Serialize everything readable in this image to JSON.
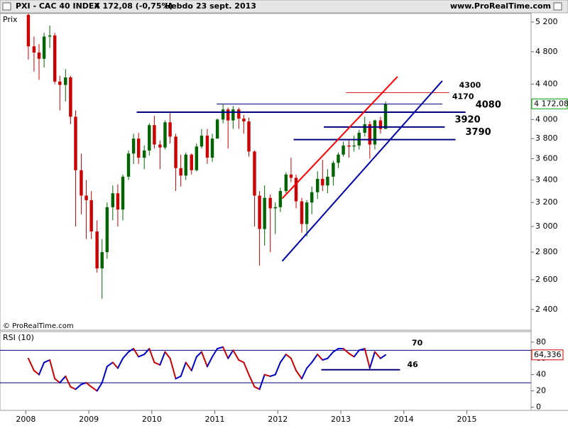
{
  "header": {
    "symbol": "PXI - CAC 40 INDEX",
    "quote": "4 172,08 (-0,75%)",
    "period": "Hebdo",
    "date": "23 sept. 2013",
    "site": "www.ProRealTime.com"
  },
  "chart_data": [
    {
      "type": "candlestick",
      "panel_label": "Prix",
      "credit": "© ProRealTime.com",
      "x": [
        2008.04,
        2008.13,
        2008.21,
        2008.29,
        2008.38,
        2008.46,
        2008.54,
        2008.63,
        2008.71,
        2008.79,
        2008.88,
        2008.96,
        2009.04,
        2009.13,
        2009.21,
        2009.29,
        2009.38,
        2009.46,
        2009.54,
        2009.63,
        2009.71,
        2009.79,
        2009.88,
        2009.96,
        2010.04,
        2010.13,
        2010.21,
        2010.29,
        2010.38,
        2010.46,
        2010.54,
        2010.63,
        2010.71,
        2010.79,
        2010.88,
        2010.96,
        2011.04,
        2011.13,
        2011.21,
        2011.29,
        2011.38,
        2011.46,
        2011.54,
        2011.63,
        2011.71,
        2011.79,
        2011.88,
        2011.96,
        2012.04,
        2012.13,
        2012.21,
        2012.29,
        2012.38,
        2012.46,
        2012.54,
        2012.63,
        2012.71,
        2012.79,
        2012.88,
        2012.96,
        2013.04,
        2013.13,
        2013.21,
        2013.29,
        2013.38,
        2013.46,
        2013.54,
        2013.63,
        2013.71
      ],
      "open": [
        5300,
        4870,
        4790,
        4710,
        5000,
        5015,
        4430,
        4390,
        4480,
        4030,
        3490,
        3260,
        3220,
        2960,
        2680,
        2800,
        3160,
        3280,
        3140,
        3430,
        3650,
        3800,
        3610,
        3680,
        3940,
        3740,
        3710,
        3970,
        3820,
        3510,
        3440,
        3640,
        3490,
        3720,
        3830,
        3610,
        3800,
        4000,
        4110,
        3990,
        4110,
        4010,
        3980,
        3670,
        3260,
        2980,
        3240,
        3150,
        3160,
        3300,
        3450,
        3420,
        3210,
        3020,
        3200,
        3290,
        3410,
        3350,
        3430,
        3560,
        3640,
        3730,
        3720,
        3730,
        3860,
        3950,
        3740,
        3990,
        3900
      ],
      "high": [
        5350,
        5000,
        4900,
        5050,
        5150,
        5050,
        4500,
        4580,
        4500,
        4100,
        3650,
        3400,
        3300,
        3050,
        2900,
        3200,
        3350,
        3360,
        3450,
        3680,
        3850,
        3860,
        3730,
        3960,
        4040,
        3780,
        3990,
        4070,
        3850,
        3640,
        3660,
        3650,
        3750,
        3900,
        3900,
        3850,
        4010,
        4170,
        4130,
        4150,
        4130,
        4050,
        4020,
        3680,
        3300,
        3350,
        3270,
        3200,
        3330,
        3470,
        3610,
        3450,
        3240,
        3220,
        3340,
        3480,
        3590,
        3500,
        3580,
        3660,
        3770,
        3790,
        3830,
        3890,
        4030,
        3980,
        4000,
        4030,
        4200
      ],
      "low": [
        4700,
        4550,
        4450,
        4600,
        4850,
        4400,
        4100,
        4200,
        3950,
        3000,
        3100,
        2900,
        2900,
        2650,
        2470,
        2750,
        3050,
        3000,
        3050,
        3400,
        3550,
        3550,
        3500,
        3630,
        3700,
        3500,
        3690,
        3750,
        3300,
        3340,
        3400,
        3450,
        3480,
        3700,
        3550,
        3570,
        3800,
        3960,
        3700,
        3900,
        3900,
        3850,
        3620,
        3000,
        2700,
        2850,
        2800,
        2940,
        3120,
        3280,
        3380,
        3150,
        2950,
        2920,
        3100,
        3230,
        3300,
        3280,
        3350,
        3510,
        3620,
        3610,
        3670,
        3690,
        3820,
        3600,
        3690,
        3850,
        3900
      ],
      "close": [
        4870,
        4790,
        4710,
        5000,
        5015,
        4430,
        4390,
        4480,
        4030,
        3490,
        3260,
        3220,
        2960,
        2680,
        2800,
        3160,
        3280,
        3140,
        3430,
        3650,
        3800,
        3610,
        3680,
        3940,
        3740,
        3710,
        3970,
        3820,
        3510,
        3440,
        3640,
        3490,
        3720,
        3830,
        3610,
        3800,
        4000,
        4110,
        3990,
        4110,
        4010,
        3980,
        3670,
        3260,
        2980,
        3240,
        3150,
        3160,
        3300,
        3450,
        3420,
        3210,
        3020,
        3200,
        3290,
        3410,
        3350,
        3430,
        3560,
        3640,
        3730,
        3720,
        3730,
        3860,
        3950,
        3740,
        3990,
        3900,
        4172.08
      ],
      "up_color": "#006400",
      "down_color": "#cc0000",
      "xlim": [
        2007.59,
        2016.02
      ],
      "xticks": [
        2008,
        2009,
        2010,
        2011,
        2012,
        2013,
        2014,
        2015
      ],
      "ylim": [
        2270,
        5320
      ],
      "log_scale": true,
      "yticks": [
        {
          "value": 5200,
          "label": "5 200"
        },
        {
          "value": 4800,
          "label": "4 800"
        },
        {
          "value": 4400,
          "label": "4 400"
        },
        {
          "value": 4000,
          "label": "4 000"
        },
        {
          "value": 3800,
          "label": "3 800"
        },
        {
          "value": 3600,
          "label": "3 600"
        },
        {
          "value": 3400,
          "label": "3 400"
        },
        {
          "value": 3200,
          "label": "3 200"
        },
        {
          "value": 3000,
          "label": "3 000"
        },
        {
          "value": 2800,
          "label": "2 800"
        },
        {
          "value": 2600,
          "label": "2 600"
        },
        {
          "value": 2400,
          "label": "2 400"
        }
      ],
      "last_price": {
        "value": 4172.08,
        "label": "4 172,08",
        "color": "#00a000"
      },
      "levels": [
        {
          "value": 4300,
          "label": "4300",
          "x": [
            2013.08,
            2014.72
          ],
          "color": "#e02020",
          "width": 1
        },
        {
          "value": 4170,
          "label": "4170",
          "x": [
            2011.03,
            2014.61
          ],
          "color": "#000080",
          "width": 1
        },
        {
          "value": 4080,
          "label": "4080",
          "x": [
            2009.76,
            2014.98
          ],
          "color": "#000080",
          "width": 2
        },
        {
          "value": 3920,
          "label": "3920",
          "x": [
            2012.73,
            2014.65
          ],
          "color": "#000080",
          "width": 2
        },
        {
          "value": 3790,
          "label": "3790",
          "x": [
            2012.25,
            2014.82
          ],
          "color": "#000080",
          "width": 2
        }
      ],
      "trendlines": [
        {
          "x": [
            2012.07,
            2013.9
          ],
          "y": [
            3235,
            4489
          ],
          "color": "#ff0000"
        },
        {
          "x": [
            2012.07,
            2014.61
          ],
          "y": [
            2733,
            4438
          ],
          "color": "#0000aa"
        }
      ]
    },
    {
      "type": "line",
      "title": "RSI (10)",
      "x": [
        2008.04,
        2008.13,
        2008.21,
        2008.29,
        2008.38,
        2008.46,
        2008.54,
        2008.63,
        2008.71,
        2008.79,
        2008.88,
        2008.96,
        2009.04,
        2009.13,
        2009.21,
        2009.29,
        2009.38,
        2009.46,
        2009.54,
        2009.63,
        2009.71,
        2009.79,
        2009.88,
        2009.96,
        2010.04,
        2010.13,
        2010.21,
        2010.29,
        2010.38,
        2010.46,
        2010.54,
        2010.63,
        2010.71,
        2010.79,
        2010.88,
        2010.96,
        2011.04,
        2011.13,
        2011.21,
        2011.29,
        2011.38,
        2011.46,
        2011.54,
        2011.63,
        2011.71,
        2011.79,
        2011.88,
        2011.96,
        2012.04,
        2012.13,
        2012.21,
        2012.29,
        2012.38,
        2012.46,
        2012.54,
        2012.63,
        2012.71,
        2012.79,
        2012.88,
        2012.96,
        2013.04,
        2013.13,
        2013.21,
        2013.29,
        2013.38,
        2013.46,
        2013.54,
        2013.63,
        2013.71
      ],
      "values": [
        60,
        45,
        40,
        55,
        58,
        35,
        30,
        38,
        25,
        22,
        28,
        30,
        25,
        20,
        30,
        50,
        55,
        48,
        60,
        68,
        72,
        62,
        65,
        72,
        55,
        52,
        68,
        60,
        35,
        38,
        55,
        45,
        62,
        68,
        50,
        62,
        72,
        74,
        60,
        70,
        58,
        55,
        40,
        25,
        22,
        40,
        38,
        40,
        55,
        65,
        60,
        45,
        35,
        48,
        55,
        65,
        58,
        60,
        68,
        72,
        72,
        66,
        62,
        70,
        72,
        48,
        68,
        60,
        64.336
      ],
      "rise_color": "#0000cc",
      "fall_color": "#cc0000",
      "xlim": [
        2007.59,
        2016.02
      ],
      "ylim": [
        -4,
        93
      ],
      "yticks": [
        0,
        20,
        40,
        60,
        80
      ],
      "last_value": {
        "value": 64.336,
        "label": "64,336",
        "color": "#cc0000"
      },
      "levels": [
        {
          "value": 70,
          "label": "70"
        },
        {
          "value": 30
        }
      ],
      "support": {
        "value": 46,
        "label": "46",
        "x": [
          2012.69,
          2013.94
        ],
        "color": "#000080"
      }
    }
  ]
}
